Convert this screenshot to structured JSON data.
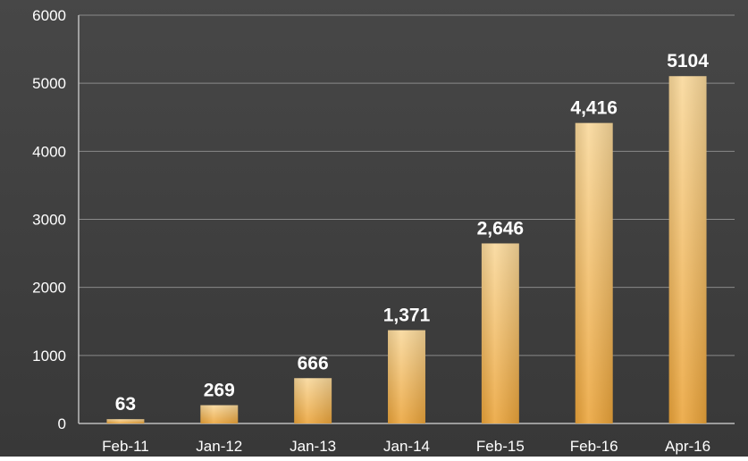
{
  "chart_data": {
    "type": "bar",
    "categories": [
      "Feb-11",
      "Jan-12",
      "Jan-13",
      "Jan-14",
      "Feb-15",
      "Feb-16",
      "Apr-16"
    ],
    "values": [
      63,
      269,
      666,
      1371,
      2646,
      4416,
      5104
    ],
    "data_labels": [
      "63",
      "269",
      "666",
      "1,371",
      "2,646",
      "4,416",
      "5104"
    ],
    "y_ticks": [
      "0",
      "1000",
      "2000",
      "3000",
      "4000",
      "5000",
      "6000"
    ],
    "ylim": [
      0,
      6000
    ],
    "grid": true,
    "legend": "none",
    "colors": {
      "background": "#3f3f3f",
      "bar_top": "#f9d89a",
      "bar_bottom": "#eba43a",
      "text": "#ffffff",
      "gridline": "#8a8a8a"
    }
  }
}
